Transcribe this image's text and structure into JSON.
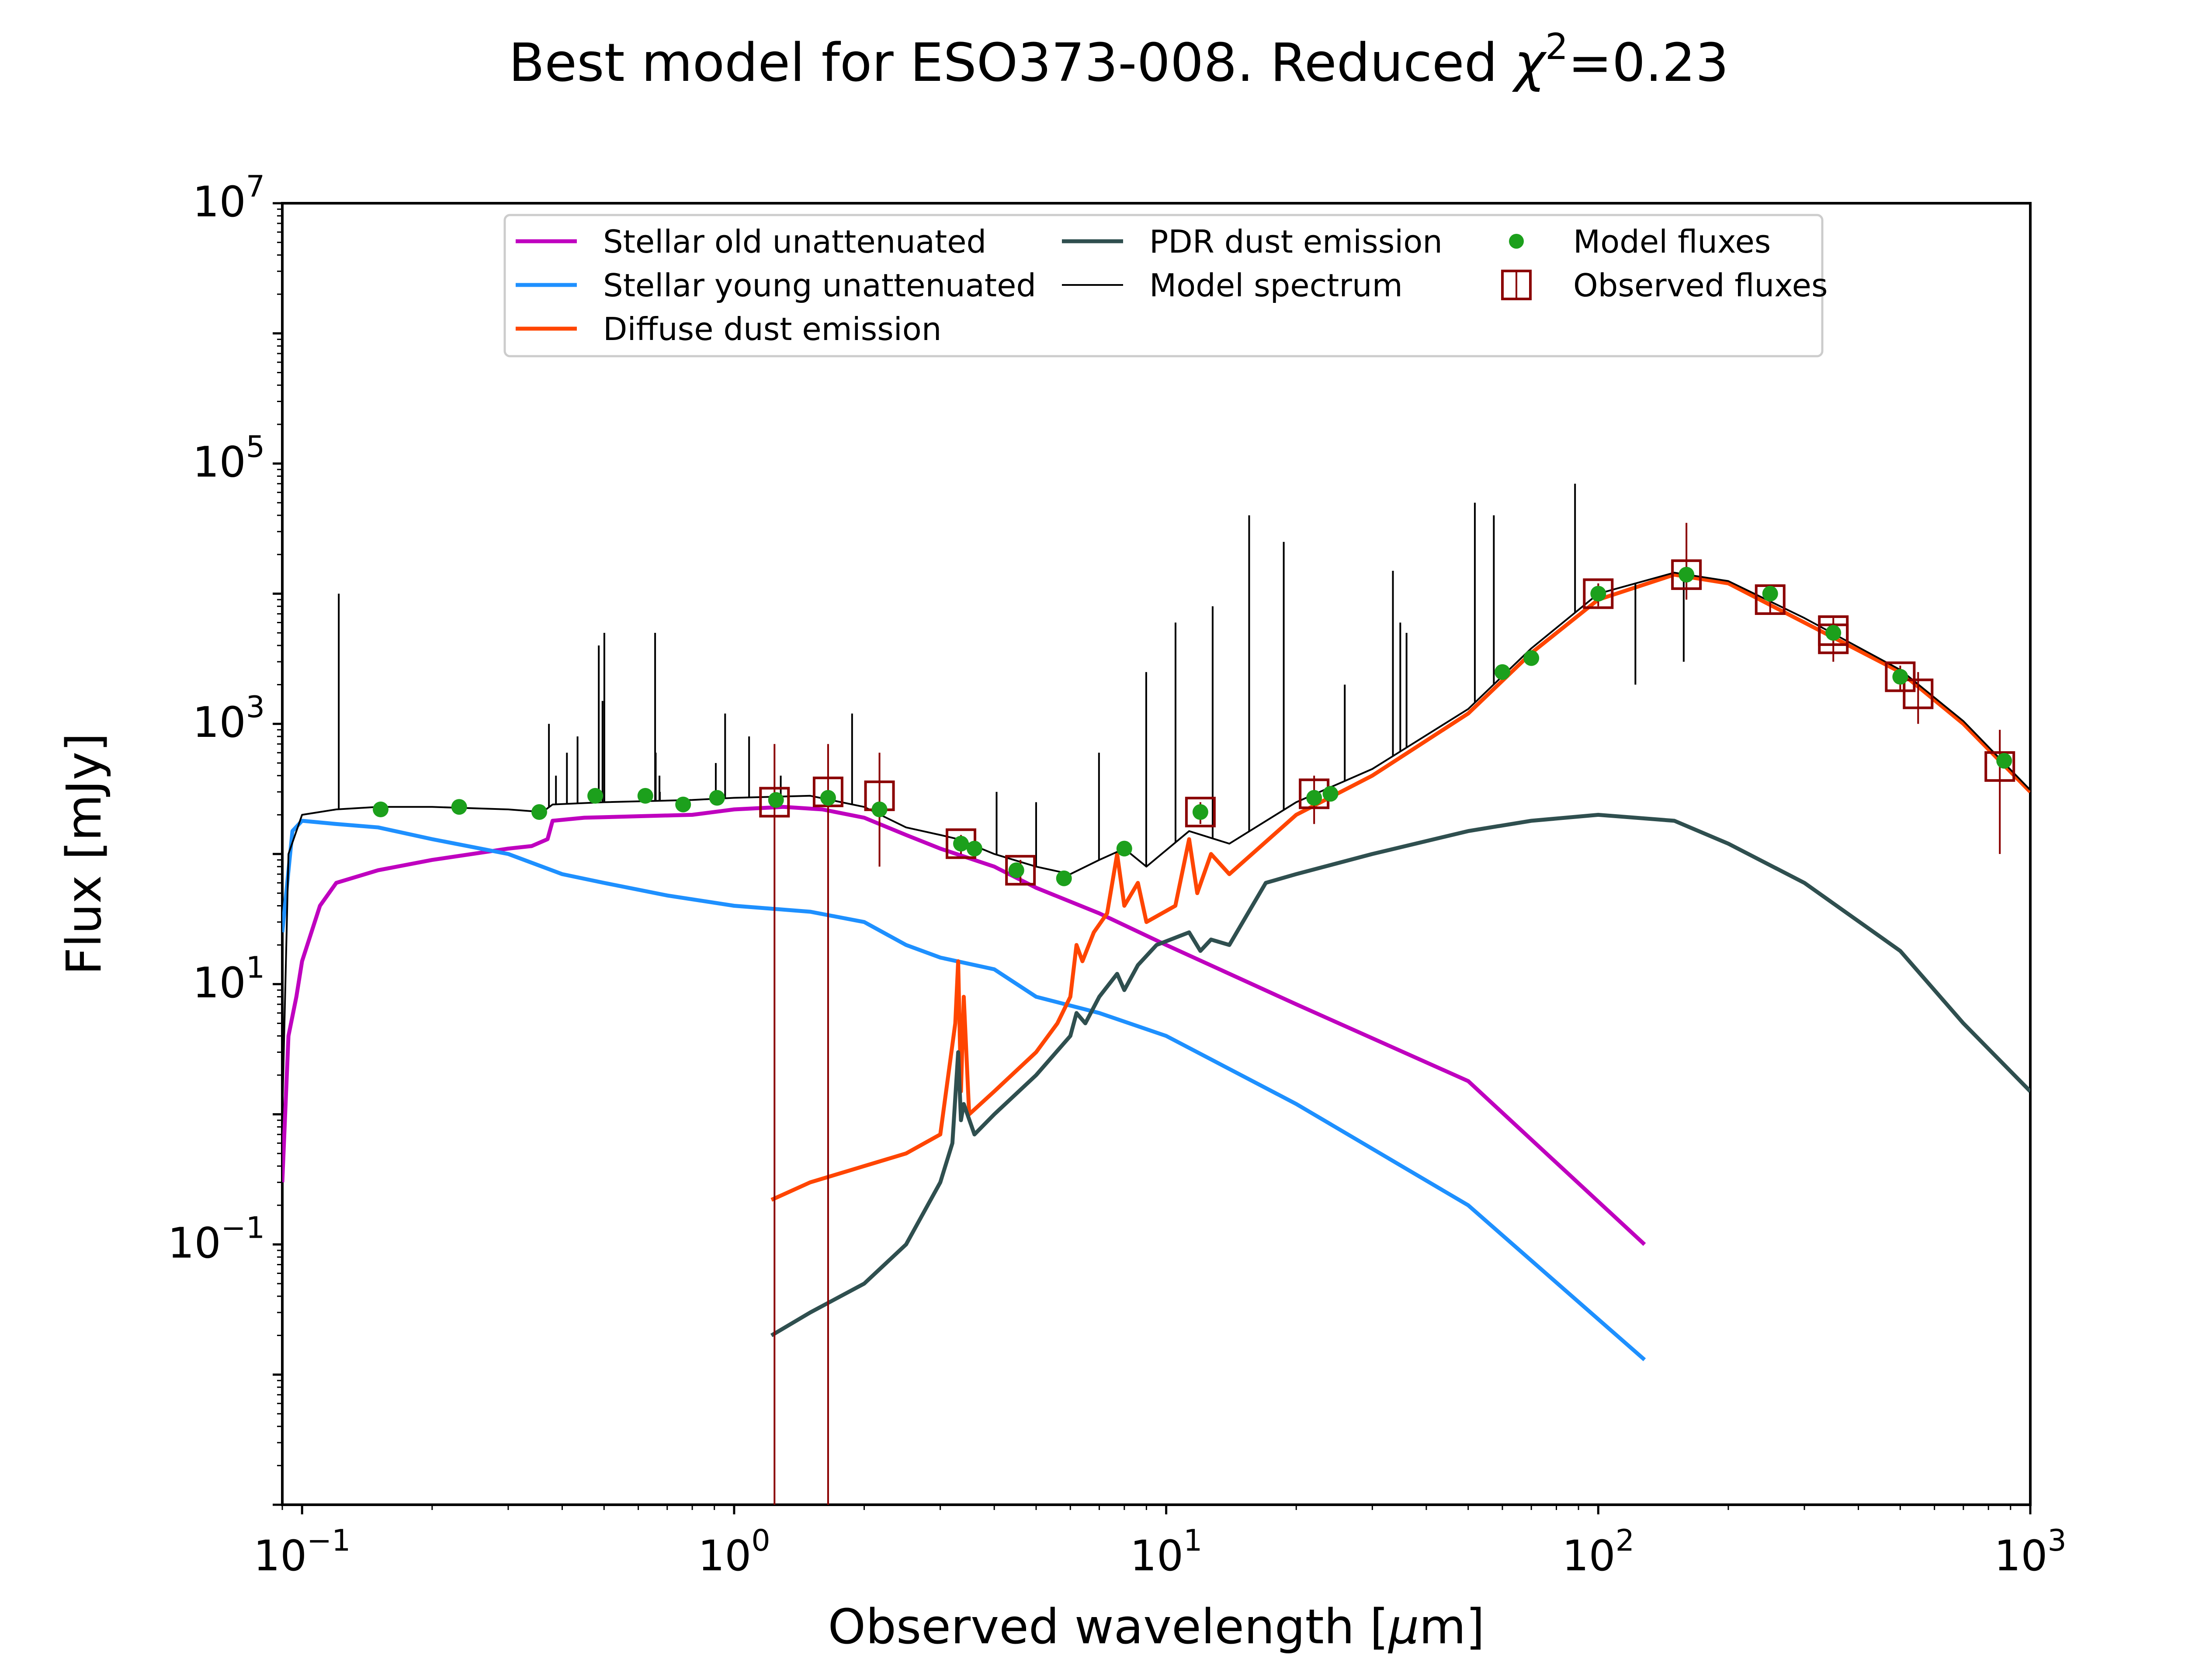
{
  "chart_data": {
    "type": "line",
    "title": "Best model for ESO373-008. Reduced",
    "title_chi_symbol": "χ",
    "title_chi_exponent": "2",
    "title_value": "=0.23",
    "xlabel_main": "Observed wavelength [",
    "xlabel_mu": "μ",
    "xlabel_unit": "m]",
    "ylabel": "Flux [mJy]",
    "xscale": "log",
    "yscale": "log",
    "xlim": [
      0.09,
      1000
    ],
    "ylim": [
      0.001,
      10000000
    ],
    "grid": false,
    "legend_position": "top-center",
    "x_ticks": [
      {
        "value": 0.1,
        "base": "10",
        "exp": "−1"
      },
      {
        "value": 1,
        "base": "10",
        "exp": "0"
      },
      {
        "value": 10,
        "base": "10",
        "exp": "1"
      },
      {
        "value": 100,
        "base": "10",
        "exp": "2"
      },
      {
        "value": 1000,
        "base": "10",
        "exp": "3"
      }
    ],
    "y_ticks": [
      {
        "value": 0.1,
        "base": "10",
        "exp": "−1"
      },
      {
        "value": 10,
        "base": "10",
        "exp": "1"
      },
      {
        "value": 1000,
        "base": "10",
        "exp": "3"
      },
      {
        "value": 100000,
        "base": "10",
        "exp": "5"
      },
      {
        "value": 10000000,
        "base": "10",
        "exp": "7"
      }
    ],
    "legend": [
      {
        "label": "Stellar old unattenuated",
        "kind": "line",
        "color": "#bf00bf"
      },
      {
        "label": "Stellar young unattenuated",
        "kind": "line",
        "color": "#1e90ff"
      },
      {
        "label": "Diffuse dust emission",
        "kind": "line",
        "color": "#ff4500"
      },
      {
        "label": "PDR dust emission",
        "kind": "line",
        "color": "#2f4f4f"
      },
      {
        "label": "Model spectrum",
        "kind": "thin-line",
        "color": "#000000"
      },
      {
        "label": "Model fluxes",
        "kind": "dot",
        "color": "#1ca01c"
      },
      {
        "label": "Observed fluxes",
        "kind": "square",
        "color": "#8b0000"
      }
    ],
    "series": [
      {
        "name": "Stellar old unattenuated",
        "color": "#bf00bf",
        "points": [
          [
            0.09,
            0.3
          ],
          [
            0.093,
            4
          ],
          [
            0.097,
            8
          ],
          [
            0.1,
            15
          ],
          [
            0.11,
            40
          ],
          [
            0.12,
            60
          ],
          [
            0.15,
            75
          ],
          [
            0.2,
            90
          ],
          [
            0.3,
            110
          ],
          [
            0.34,
            115
          ],
          [
            0.37,
            130
          ],
          [
            0.38,
            180
          ],
          [
            0.45,
            190
          ],
          [
            0.6,
            195
          ],
          [
            0.8,
            200
          ],
          [
            1.0,
            220
          ],
          [
            1.3,
            230
          ],
          [
            1.6,
            220
          ],
          [
            2.0,
            190
          ],
          [
            2.5,
            140
          ],
          [
            3.0,
            110
          ],
          [
            4.0,
            80
          ],
          [
            5.0,
            55
          ],
          [
            7.0,
            35
          ],
          [
            10.0,
            20
          ],
          [
            20.0,
            7
          ],
          [
            50.0,
            1.8
          ],
          [
            128,
            0.1
          ]
        ]
      },
      {
        "name": "Stellar young unattenuated",
        "color": "#1e90ff",
        "points": [
          [
            0.09,
            25
          ],
          [
            0.095,
            150
          ],
          [
            0.1,
            180
          ],
          [
            0.12,
            170
          ],
          [
            0.15,
            160
          ],
          [
            0.2,
            130
          ],
          [
            0.3,
            100
          ],
          [
            0.4,
            70
          ],
          [
            0.5,
            60
          ],
          [
            0.7,
            48
          ],
          [
            1.0,
            40
          ],
          [
            1.5,
            36
          ],
          [
            2.0,
            30
          ],
          [
            2.5,
            20
          ],
          [
            3.0,
            16
          ],
          [
            4.0,
            13
          ],
          [
            5.0,
            8
          ],
          [
            7.0,
            6
          ],
          [
            10.0,
            4
          ],
          [
            20.0,
            1.2
          ],
          [
            50.0,
            0.2
          ],
          [
            128,
            0.013
          ]
        ]
      },
      {
        "name": "Diffuse dust emission",
        "color": "#ff4500",
        "points": [
          [
            1.22,
            0.22
          ],
          [
            1.5,
            0.3
          ],
          [
            2.0,
            0.4
          ],
          [
            2.5,
            0.5
          ],
          [
            3.0,
            0.7
          ],
          [
            3.25,
            5
          ],
          [
            3.3,
            15
          ],
          [
            3.35,
            1.5
          ],
          [
            3.4,
            8
          ],
          [
            3.5,
            1
          ],
          [
            4.0,
            1.5
          ],
          [
            5.0,
            3
          ],
          [
            5.6,
            5
          ],
          [
            6.0,
            8
          ],
          [
            6.2,
            20
          ],
          [
            6.4,
            15
          ],
          [
            6.8,
            25
          ],
          [
            7.3,
            35
          ],
          [
            7.7,
            100
          ],
          [
            8.0,
            40
          ],
          [
            8.6,
            60
          ],
          [
            9.0,
            30
          ],
          [
            10.5,
            40
          ],
          [
            11.3,
            130
          ],
          [
            11.8,
            50
          ],
          [
            12.7,
            100
          ],
          [
            14.0,
            70
          ],
          [
            20.0,
            200
          ],
          [
            30.0,
            400
          ],
          [
            50.0,
            1200
          ],
          [
            70.0,
            3500
          ],
          [
            100,
            9000
          ],
          [
            150,
            14000
          ],
          [
            200,
            12000
          ],
          [
            300,
            6000
          ],
          [
            500,
            2500
          ],
          [
            700,
            1000
          ],
          [
            1000,
            300
          ]
        ]
      },
      {
        "name": "PDR dust emission",
        "color": "#2f4f4f",
        "points": [
          [
            1.22,
            0.02
          ],
          [
            1.5,
            0.03
          ],
          [
            2.0,
            0.05
          ],
          [
            2.5,
            0.1
          ],
          [
            3.0,
            0.3
          ],
          [
            3.2,
            0.6
          ],
          [
            3.3,
            3
          ],
          [
            3.35,
            0.9
          ],
          [
            3.4,
            1.2
          ],
          [
            3.6,
            0.7
          ],
          [
            4.0,
            1
          ],
          [
            5.0,
            2
          ],
          [
            6.0,
            4
          ],
          [
            6.2,
            6
          ],
          [
            6.5,
            5
          ],
          [
            7.0,
            8
          ],
          [
            7.7,
            12
          ],
          [
            8.0,
            9
          ],
          [
            8.6,
            14
          ],
          [
            9.5,
            20
          ],
          [
            11.3,
            25
          ],
          [
            12.0,
            18
          ],
          [
            12.7,
            22
          ],
          [
            14.0,
            20
          ],
          [
            17.0,
            60
          ],
          [
            20.0,
            70
          ],
          [
            30.0,
            100
          ],
          [
            50.0,
            150
          ],
          [
            70.0,
            180
          ],
          [
            100,
            200
          ],
          [
            150,
            180
          ],
          [
            200,
            120
          ],
          [
            300,
            60
          ],
          [
            500,
            18
          ],
          [
            700,
            5
          ],
          [
            1000,
            1.5
          ]
        ]
      },
      {
        "name": "Model spectrum",
        "color": "#000000",
        "points": [
          [
            0.09,
            1
          ],
          [
            0.093,
            100
          ],
          [
            0.1,
            200
          ],
          [
            0.12,
            220
          ],
          [
            0.15,
            230
          ],
          [
            0.2,
            230
          ],
          [
            0.3,
            220
          ],
          [
            0.36,
            210
          ],
          [
            0.38,
            240
          ],
          [
            0.5,
            250
          ],
          [
            0.8,
            260
          ],
          [
            1.0,
            270
          ],
          [
            1.5,
            280
          ],
          [
            2.0,
            230
          ],
          [
            2.5,
            160
          ],
          [
            3.0,
            140
          ],
          [
            3.3,
            130
          ],
          [
            4.0,
            100
          ],
          [
            5.0,
            80
          ],
          [
            6.0,
            70
          ],
          [
            7.0,
            90
          ],
          [
            8.0,
            110
          ],
          [
            9.0,
            80
          ],
          [
            11.3,
            150
          ],
          [
            14.0,
            120
          ],
          [
            20.0,
            250
          ],
          [
            30.0,
            450
          ],
          [
            50.0,
            1300
          ],
          [
            70.0,
            3800
          ],
          [
            100,
            10000
          ],
          [
            150,
            14500
          ],
          [
            200,
            12500
          ],
          [
            300,
            6500
          ],
          [
            500,
            2600
          ],
          [
            700,
            1050
          ],
          [
            1000,
            310
          ]
        ],
        "emission_lines": [
          [
            0.1216,
            10000
          ],
          [
            0.3727,
            1000
          ],
          [
            0.3869,
            400
          ],
          [
            0.4102,
            600
          ],
          [
            0.4341,
            800
          ],
          [
            0.4861,
            4000
          ],
          [
            0.4959,
            1500
          ],
          [
            0.5007,
            5000
          ],
          [
            0.6563,
            5000
          ],
          [
            0.6584,
            600
          ],
          [
            0.6717,
            400
          ],
          [
            0.6731,
            300
          ],
          [
            0.9069,
            500
          ],
          [
            0.9531,
            1200
          ],
          [
            1.083,
            800
          ],
          [
            1.282,
            400
          ],
          [
            1.875,
            1200
          ],
          [
            2.166,
            200
          ],
          [
            4.05,
            300
          ],
          [
            5.0,
            250
          ],
          [
            6.99,
            600
          ],
          [
            8.99,
            2500
          ],
          [
            10.51,
            6000
          ],
          [
            12.81,
            8000
          ],
          [
            15.56,
            40000
          ],
          [
            18.71,
            25000
          ],
          [
            25.9,
            2000
          ],
          [
            33.48,
            15000
          ],
          [
            34.82,
            6000
          ],
          [
            36.0,
            5000
          ],
          [
            51.81,
            50000
          ],
          [
            57.32,
            40000
          ],
          [
            88.36,
            70000
          ],
          [
            121.9,
            2000
          ],
          [
            157.7,
            3000
          ]
        ]
      }
    ],
    "model_fluxes": [
      {
        "x": 0.152,
        "y": 220
      },
      {
        "x": 0.231,
        "y": 230
      },
      {
        "x": 0.354,
        "y": 210
      },
      {
        "x": 0.477,
        "y": 280
      },
      {
        "x": 0.623,
        "y": 280
      },
      {
        "x": 0.762,
        "y": 240
      },
      {
        "x": 0.913,
        "y": 270
      },
      {
        "x": 1.25,
        "y": 260
      },
      {
        "x": 1.65,
        "y": 270
      },
      {
        "x": 2.17,
        "y": 220
      },
      {
        "x": 3.35,
        "y": 120
      },
      {
        "x": 3.6,
        "y": 110
      },
      {
        "x": 4.5,
        "y": 75
      },
      {
        "x": 5.8,
        "y": 65
      },
      {
        "x": 8.0,
        "y": 110
      },
      {
        "x": 12.0,
        "y": 210
      },
      {
        "x": 22.0,
        "y": 270
      },
      {
        "x": 24.0,
        "y": 290
      },
      {
        "x": 60.0,
        "y": 2500
      },
      {
        "x": 70.0,
        "y": 3200
      },
      {
        "x": 100,
        "y": 10000
      },
      {
        "x": 160,
        "y": 14000
      },
      {
        "x": 250,
        "y": 10000
      },
      {
        "x": 350,
        "y": 5000
      },
      {
        "x": 500,
        "y": 2300
      },
      {
        "x": 870,
        "y": 520
      }
    ],
    "observed_fluxes": [
      {
        "x": 1.24,
        "y": 250,
        "ylow": 0.001,
        "yhigh": 700
      },
      {
        "x": 1.65,
        "y": 300,
        "ylow": 0.001,
        "yhigh": 700
      },
      {
        "x": 2.17,
        "y": 280,
        "ylow": 80,
        "yhigh": 600
      },
      {
        "x": 3.35,
        "y": 120,
        "ylow": 100,
        "yhigh": 140
      },
      {
        "x": 4.6,
        "y": 75,
        "ylow": 60,
        "yhigh": 90
      },
      {
        "x": 12.0,
        "y": 210,
        "ylow": 170,
        "yhigh": 250
      },
      {
        "x": 22.0,
        "y": 290,
        "ylow": 170,
        "yhigh": 400
      },
      {
        "x": 100,
        "y": 10000,
        "ylow": 8000,
        "yhigh": 12000
      },
      {
        "x": 160,
        "y": 14000,
        "ylow": 9000,
        "yhigh": 35000
      },
      {
        "x": 250,
        "y": 9000,
        "ylow": 7000,
        "yhigh": 11000
      },
      {
        "x": 350,
        "y": 4500,
        "ylow": 3000,
        "yhigh": 6000
      },
      {
        "x": 350,
        "y": 5200,
        "ylow": 4000,
        "yhigh": 6500
      },
      {
        "x": 500,
        "y": 2300,
        "ylow": 1800,
        "yhigh": 2800
      },
      {
        "x": 550,
        "y": 1700,
        "ylow": 1000,
        "yhigh": 2500
      },
      {
        "x": 850,
        "y": 470,
        "ylow": 100,
        "yhigh": 900
      }
    ]
  }
}
